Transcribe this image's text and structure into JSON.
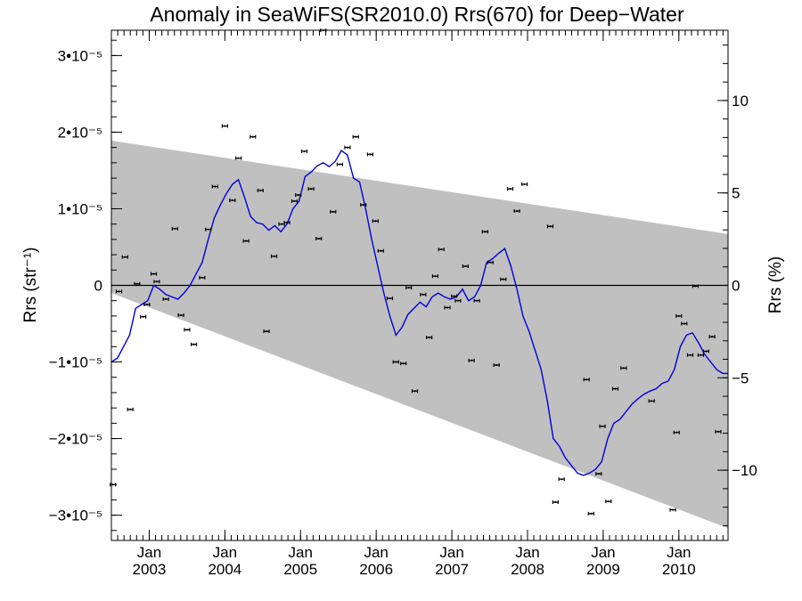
{
  "chart_data": {
    "type": "scatter",
    "title": "Anomaly in SeaWiFS(SR2010.0) Rrs(670) for Deep−Water",
    "ylabel": "Rrs (str⁻¹)",
    "y2label": "Rrs (%)",
    "xlim": [
      2002.5,
      2010.65
    ],
    "ylim": [
      -3.33e-05,
      3.33e-05
    ],
    "y2lim": [
      -13.8,
      13.8
    ],
    "y_ticks": [
      {
        "value": 3e-05,
        "label": "3•10⁻⁵"
      },
      {
        "value": 2e-05,
        "label": "2•10⁻⁵"
      },
      {
        "value": 1e-05,
        "label": "1•10⁻⁵"
      },
      {
        "value": 0,
        "label": "0"
      },
      {
        "value": -1e-05,
        "label": "−1•10⁻⁵"
      },
      {
        "value": -2e-05,
        "label": "−2•10⁻⁵"
      },
      {
        "value": -3e-05,
        "label": "−3•10⁻⁵"
      }
    ],
    "y2_ticks": [
      {
        "value": 10,
        "label": "10"
      },
      {
        "value": 5,
        "label": "5"
      },
      {
        "value": 0,
        "label": "0"
      },
      {
        "value": -5,
        "label": "−5"
      },
      {
        "value": -10,
        "label": "−10"
      }
    ],
    "x_ticks": [
      {
        "value": 2003.0,
        "month": "Jan",
        "year": "2003"
      },
      {
        "value": 2004.0,
        "month": "Jan",
        "year": "2004"
      },
      {
        "value": 2005.0,
        "month": "Jan",
        "year": "2005"
      },
      {
        "value": 2006.0,
        "month": "Jan",
        "year": "2006"
      },
      {
        "value": 2007.0,
        "month": "Jan",
        "year": "2007"
      },
      {
        "value": 2008.0,
        "month": "Jan",
        "year": "2008"
      },
      {
        "value": 2009.0,
        "month": "Jan",
        "year": "2009"
      },
      {
        "value": 2010.0,
        "month": "Jan",
        "year": "2010"
      }
    ],
    "band": {
      "x": [
        2002.5,
        2010.65
      ],
      "upper": [
        1.89e-05,
        6.7e-06
      ],
      "lower": [
        -1e-06,
        -3.17e-05
      ],
      "color": "#c0c0c0"
    },
    "zero_line": true,
    "series": [
      {
        "kind": "points",
        "color": "#000000",
        "x": [
          2002.52,
          2002.6,
          2002.68,
          2002.75,
          2002.84,
          2002.92,
          2002.97,
          2003.06,
          2003.1,
          2003.22,
          2003.34,
          2003.42,
          2003.5,
          2003.59,
          2003.7,
          2003.78,
          2003.87,
          2004.0,
          2004.1,
          2004.18,
          2004.28,
          2004.37,
          2004.47,
          2004.55,
          2004.65,
          2004.75,
          2004.82,
          2004.92,
          2004.97,
          2005.05,
          2005.14,
          2005.24,
          2005.3,
          2005.43,
          2005.52,
          2005.62,
          2005.73,
          2005.83,
          2005.92,
          2005.99,
          2006.06,
          2006.18,
          2006.26,
          2006.36,
          2006.43,
          2006.51,
          2006.62,
          2006.7,
          2006.78,
          2006.86,
          2006.94,
          2007.03,
          2007.08,
          2007.18,
          2007.26,
          2007.33,
          2007.44,
          2007.51,
          2007.59,
          2007.68,
          2007.77,
          2007.86,
          2007.96,
          2008.3,
          2008.37,
          2008.45,
          2008.78,
          2008.84,
          2008.94,
          2008.99,
          2009.07,
          2009.16,
          2009.27,
          2009.64,
          2009.92,
          2009.97,
          2010.0,
          2010.07,
          2010.15,
          2010.22,
          2010.29,
          2010.36,
          2010.44,
          2010.52
        ],
        "y": [
          -2.6e-05,
          -8e-07,
          3.7e-06,
          -1.62e-05,
          2e-07,
          -4.1e-06,
          -2.5e-06,
          1.5e-06,
          5e-07,
          -1.8e-06,
          7.4e-06,
          -3.9e-06,
          -5.8e-06,
          -7.7e-06,
          1e-06,
          7.3e-06,
          1.29e-05,
          2.08e-05,
          1.11e-05,
          1.66e-05,
          5.8e-06,
          1.94e-05,
          1.24e-05,
          -6e-06,
          3.8e-06,
          8e-06,
          8.2e-06,
          1.1e-05,
          1.18e-05,
          1.75e-05,
          1.26e-05,
          6.1e-06,
          3.33e-05,
          9.6e-06,
          1.58e-05,
          1.8e-05,
          1.94e-05,
          1.05e-05,
          1.71e-05,
          8.4e-06,
          4.5e-06,
          -1.7e-06,
          -1e-05,
          -1.02e-05,
          -3e-07,
          -1.38e-05,
          -1.2e-06,
          -6.8e-06,
          1.2e-06,
          4.7e-06,
          -2.9e-06,
          -1.4e-06,
          -2e-06,
          2.5e-06,
          -9.8e-06,
          -2e-06,
          7e-06,
          3e-06,
          -1.04e-05,
          8e-07,
          1.26e-05,
          9.7e-06,
          1.32e-05,
          7.7e-06,
          -2.83e-05,
          -2.53e-05,
          -1.23e-05,
          -2.98e-05,
          -2.46e-05,
          -1.84e-05,
          -2.82e-05,
          -1.35e-05,
          -1.08e-05,
          -1.51e-05,
          -2.93e-05,
          -1.92e-05,
          -4e-06,
          -5e-06,
          -9.1e-06,
          -1e-07,
          -9.1e-06,
          -8.6e-06,
          -6.7e-06,
          -1.91e-05
        ]
      },
      {
        "kind": "line",
        "color": "#0000dd",
        "x": [
          2002.5,
          2002.58,
          2002.66,
          2002.74,
          2002.82,
          2002.9,
          2002.98,
          2003.06,
          2003.14,
          2003.22,
          2003.3,
          2003.38,
          2003.46,
          2003.54,
          2003.62,
          2003.7,
          2003.78,
          2003.86,
          2003.94,
          2004.02,
          2004.1,
          2004.18,
          2004.26,
          2004.34,
          2004.42,
          2004.5,
          2004.58,
          2004.66,
          2004.74,
          2004.82,
          2004.9,
          2004.98,
          2005.06,
          2005.14,
          2005.22,
          2005.3,
          2005.38,
          2005.46,
          2005.54,
          2005.62,
          2005.7,
          2005.78,
          2005.86,
          2005.94,
          2006.02,
          2006.1,
          2006.18,
          2006.26,
          2006.34,
          2006.42,
          2006.5,
          2006.58,
          2006.66,
          2006.74,
          2006.82,
          2006.9,
          2006.98,
          2007.06,
          2007.14,
          2007.22,
          2007.3,
          2007.38,
          2007.46,
          2007.54,
          2007.62,
          2007.7,
          2007.78,
          2007.86,
          2007.94,
          2008.02,
          2008.1,
          2008.18,
          2008.26,
          2008.34,
          2008.42,
          2008.5,
          2008.58,
          2008.66,
          2008.74,
          2008.82,
          2008.9,
          2008.98,
          2009.06,
          2009.14,
          2009.22,
          2009.3,
          2009.38,
          2009.46,
          2009.54,
          2009.62,
          2009.7,
          2009.78,
          2009.86,
          2009.94,
          2010.02,
          2010.1,
          2010.18,
          2010.26,
          2010.34,
          2010.42,
          2010.5,
          2010.58,
          2010.65
        ],
        "y": [
          -1e-05,
          -9.5e-06,
          -8e-06,
          -6.5e-06,
          -3e-06,
          -2.5e-06,
          -2e-06,
          0.0,
          -5e-07,
          -1.2e-06,
          -1.5e-06,
          -1.8e-06,
          -1e-06,
          0.0,
          1.5e-06,
          3e-06,
          6e-06,
          8.8e-06,
          1.05e-05,
          1.2e-05,
          1.32e-05,
          1.38e-05,
          1.15e-05,
          9e-06,
          8.2e-06,
          8e-06,
          7.2e-06,
          7.8e-06,
          7e-06,
          8e-06,
          1e-05,
          1.1e-05,
          1.42e-05,
          1.48e-05,
          1.56e-05,
          1.6e-05,
          1.55e-05,
          1.62e-05,
          1.76e-05,
          1.7e-05,
          1.4e-05,
          1.35e-05,
          1e-05,
          6e-06,
          2.5e-06,
          -1e-06,
          -4e-06,
          -6.5e-06,
          -5.5e-06,
          -3.8e-06,
          -3e-06,
          -2.2e-06,
          -2.8e-06,
          -1.5e-06,
          -1e-06,
          -1.5e-06,
          -1.8e-06,
          -1.5e-06,
          -5e-07,
          -2e-06,
          -1.5e-06,
          0.0,
          3e-06,
          3.5e-06,
          4.2e-06,
          4.8e-06,
          2.5e-06,
          -5e-07,
          -4e-06,
          -6e-06,
          -8.5e-06,
          -1.1e-05,
          -1.5e-05,
          -2e-05,
          -2.1e-05,
          -2.25e-05,
          -2.35e-05,
          -2.45e-05,
          -2.48e-05,
          -2.45e-05,
          -2.4e-05,
          -2.3e-05,
          -2e-05,
          -1.8e-05,
          -1.75e-05,
          -1.65e-05,
          -1.55e-05,
          -1.48e-05,
          -1.42e-05,
          -1.38e-05,
          -1.35e-05,
          -1.28e-05,
          -1.25e-05,
          -1.1e-05,
          -8e-06,
          -6.5e-06,
          -6.2e-06,
          -7.5e-06,
          -9e-06,
          -1e-05,
          -1.1e-05,
          -1.15e-05,
          -1.15e-05
        ]
      }
    ]
  }
}
